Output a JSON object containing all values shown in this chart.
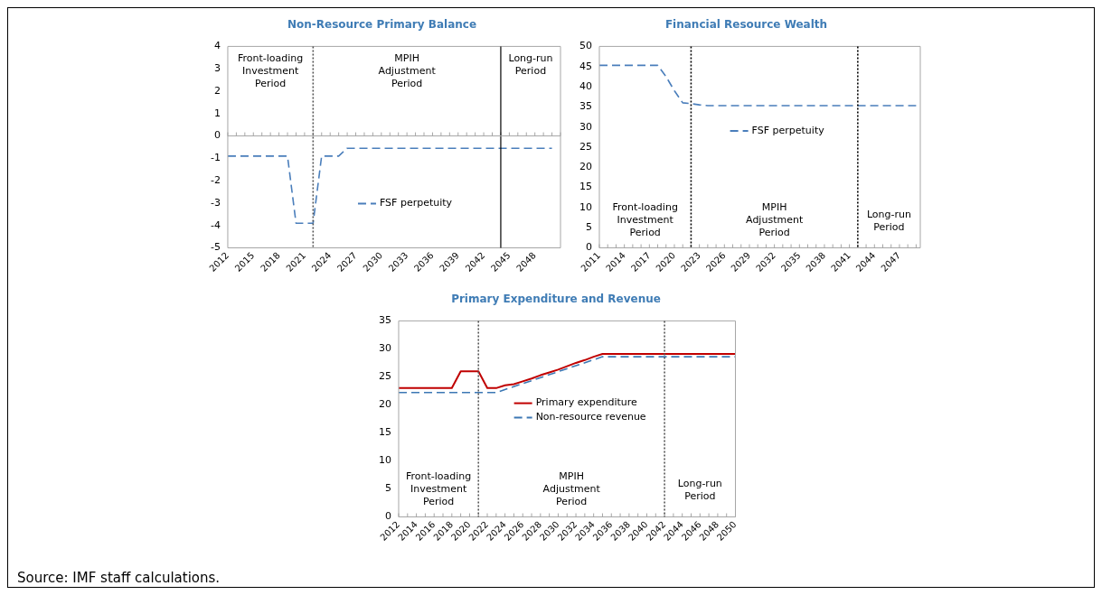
{
  "chart_data": [
    {
      "type": "line",
      "title": "Non-Resource Primary Balance",
      "xlim": [
        2012,
        2051
      ],
      "xticks": [
        2012,
        2015,
        2018,
        2021,
        2024,
        2027,
        2030,
        2033,
        2036,
        2039,
        2042,
        2045,
        2048
      ],
      "ylim": [
        -5,
        4
      ],
      "yticks": [
        -5,
        -4,
        -3,
        -2,
        -1,
        0,
        1,
        2,
        3,
        4
      ],
      "grid": false,
      "legend": "bottom",
      "line_style": "dashed",
      "marker": "none",
      "series": [
        {
          "name": "FSF perpetuity",
          "color": "#4a7ebb",
          "x": [
            2012,
            2013,
            2014,
            2015,
            2016,
            2017,
            2018,
            2019,
            2020,
            2021,
            2022,
            2023,
            2024,
            2025,
            2026,
            2030,
            2035,
            2040,
            2045,
            2050
          ],
          "values": [
            -0.9,
            -0.9,
            -0.9,
            -0.9,
            -0.9,
            -0.9,
            -0.9,
            -0.9,
            -3.9,
            -3.9,
            -3.9,
            -0.9,
            -0.9,
            -0.9,
            -0.55,
            -0.55,
            -0.55,
            -0.55,
            -0.55,
            -0.55
          ]
        }
      ],
      "ref_lines": [
        {
          "axis": "x",
          "value": 2022,
          "color": "#555555",
          "line_style": "dotted"
        },
        {
          "axis": "x",
          "value": 2044,
          "color": "#000000",
          "line_style": "solid"
        },
        {
          "axis": "y",
          "value": 0,
          "color": "#a6a6a6",
          "line_style": "solid"
        }
      ],
      "annotations": [
        "Front-loading Investment Period",
        "MPIH Adjustment Period",
        "Long-run Period"
      ]
    },
    {
      "type": "line",
      "title": "Financial Resource Wealth",
      "xlim": [
        2011,
        2049.5
      ],
      "xticks": [
        2011,
        2014,
        2017,
        2020,
        2023,
        2026,
        2029,
        2032,
        2035,
        2038,
        2041,
        2044,
        2047
      ],
      "ylim": [
        0,
        50
      ],
      "yticks": [
        0,
        5,
        10,
        15,
        20,
        25,
        30,
        35,
        40,
        45,
        50
      ],
      "grid": false,
      "legend": "top",
      "line_style": "dashed",
      "marker": "none",
      "series": [
        {
          "name": "FSF perpetuity",
          "color": "#4a7ebb",
          "x": [
            2011,
            2012,
            2013,
            2014,
            2015,
            2016,
            2017,
            2018,
            2019,
            2020,
            2021,
            2022,
            2023,
            2024,
            2030,
            2035,
            2040,
            2045,
            2049
          ],
          "values": [
            45.3,
            45.3,
            45.3,
            45.3,
            45.3,
            45.3,
            45.3,
            45.3,
            42.5,
            39,
            36,
            35.8,
            35.5,
            35.3,
            35.3,
            35.3,
            35.3,
            35.3,
            35.3
          ]
        }
      ],
      "ref_lines": [
        {
          "axis": "x",
          "value": 2022,
          "color": "#000000",
          "line_style": "dotted"
        },
        {
          "axis": "x",
          "value": 2042,
          "color": "#000000",
          "line_style": "dotted"
        }
      ],
      "annotations": [
        "Front-loading Investment Period",
        "MPIH Adjustment Period",
        "Long-run Period"
      ]
    },
    {
      "type": "line",
      "title": "Primary Expenditure and Revenue",
      "xlim": [
        2012,
        2050
      ],
      "xticks": [
        2012,
        2014,
        2016,
        2018,
        2020,
        2022,
        2024,
        2026,
        2028,
        2030,
        2032,
        2034,
        2036,
        2038,
        2040,
        2042,
        2044,
        2046,
        2048,
        2050
      ],
      "ylim": [
        0,
        35
      ],
      "yticks": [
        0,
        5,
        10,
        15,
        20,
        25,
        30,
        35
      ],
      "grid": false,
      "legend": "center",
      "marker": "none",
      "series": [
        {
          "name": "Primary expenditure",
          "color": "#c00000",
          "line_style": "solid",
          "x": [
            2012,
            2013,
            2014,
            2015,
            2016,
            2017,
            2018,
            2019,
            2020,
            2021,
            2022,
            2023,
            2024,
            2025,
            2026,
            2027,
            2028,
            2029,
            2030,
            2031,
            2032,
            2033,
            2034,
            2035,
            2040,
            2045,
            2050
          ],
          "values": [
            23,
            23,
            23,
            23,
            23,
            23,
            23,
            26,
            26,
            26,
            23,
            23,
            23.5,
            23.7,
            24.2,
            24.7,
            25.3,
            25.8,
            26.3,
            26.9,
            27.5,
            28,
            28.6,
            29.1,
            29.1,
            29.1,
            29.1
          ]
        },
        {
          "name": "Non-resource revenue",
          "color": "#3c78b4",
          "line_style": "dashed",
          "x": [
            2012,
            2016,
            2020,
            2023,
            2035,
            2040,
            2045,
            2050
          ],
          "values": [
            22.2,
            22.2,
            22.2,
            22.2,
            28.6,
            28.6,
            28.6,
            28.6
          ]
        }
      ],
      "ref_lines": [
        {
          "axis": "x",
          "value": 2021,
          "color": "#555555",
          "line_style": "dotted"
        },
        {
          "axis": "x",
          "value": 2042,
          "color": "#555555",
          "line_style": "dotted"
        }
      ],
      "annotations": [
        "Front-loading Investment Period",
        "MPIH Adjustment Period",
        "Long-run Period",
        "Source: IMF staff calculations."
      ]
    }
  ]
}
